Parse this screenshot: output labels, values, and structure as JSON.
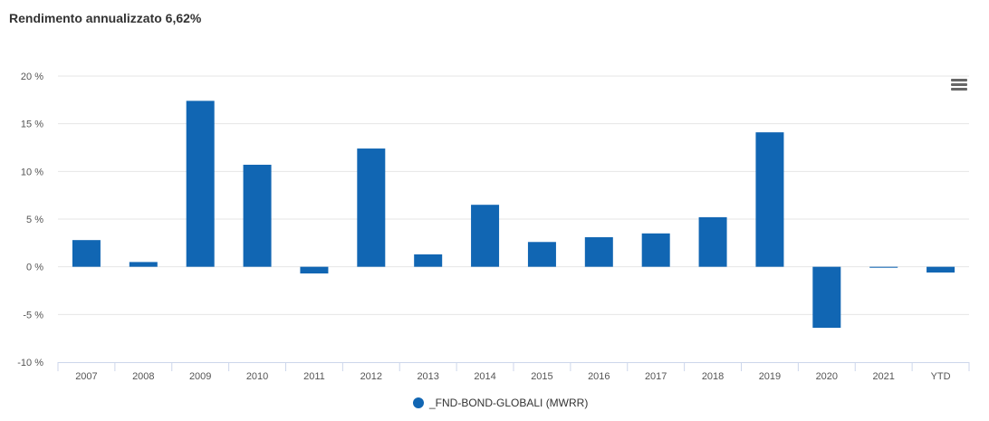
{
  "title": "Rendimento annualizzato 6,62%",
  "colors": {
    "bar": "#1166b3",
    "grid": "#e6e6e6"
  },
  "menu_icon": "hamburger-menu-icon",
  "chart_data": {
    "type": "bar",
    "title": "Rendimento annualizzato 6,62%",
    "xlabel": "",
    "ylabel": "",
    "categories": [
      "2007",
      "2008",
      "2009",
      "2010",
      "2011",
      "2012",
      "2013",
      "2014",
      "2015",
      "2016",
      "2017",
      "2018",
      "2019",
      "2020",
      "2021",
      "YTD"
    ],
    "series": [
      {
        "name": "_FND-BOND-GLOBALI (MWRR)",
        "values": [
          2.8,
          0.5,
          17.4,
          10.7,
          -0.7,
          12.4,
          1.3,
          6.5,
          2.6,
          3.1,
          3.5,
          5.2,
          14.1,
          -6.4,
          -0.1,
          -0.6
        ]
      }
    ],
    "ylim": [
      -10,
      20
    ],
    "yticks": [
      20,
      15,
      10,
      5,
      0,
      -5,
      -10
    ],
    "ytick_labels": [
      "20 %",
      "15 %",
      "10 %",
      "5 %",
      "0 %",
      "-5 %",
      "-10 %"
    ],
    "grid": true,
    "legend": "bottom-center"
  }
}
